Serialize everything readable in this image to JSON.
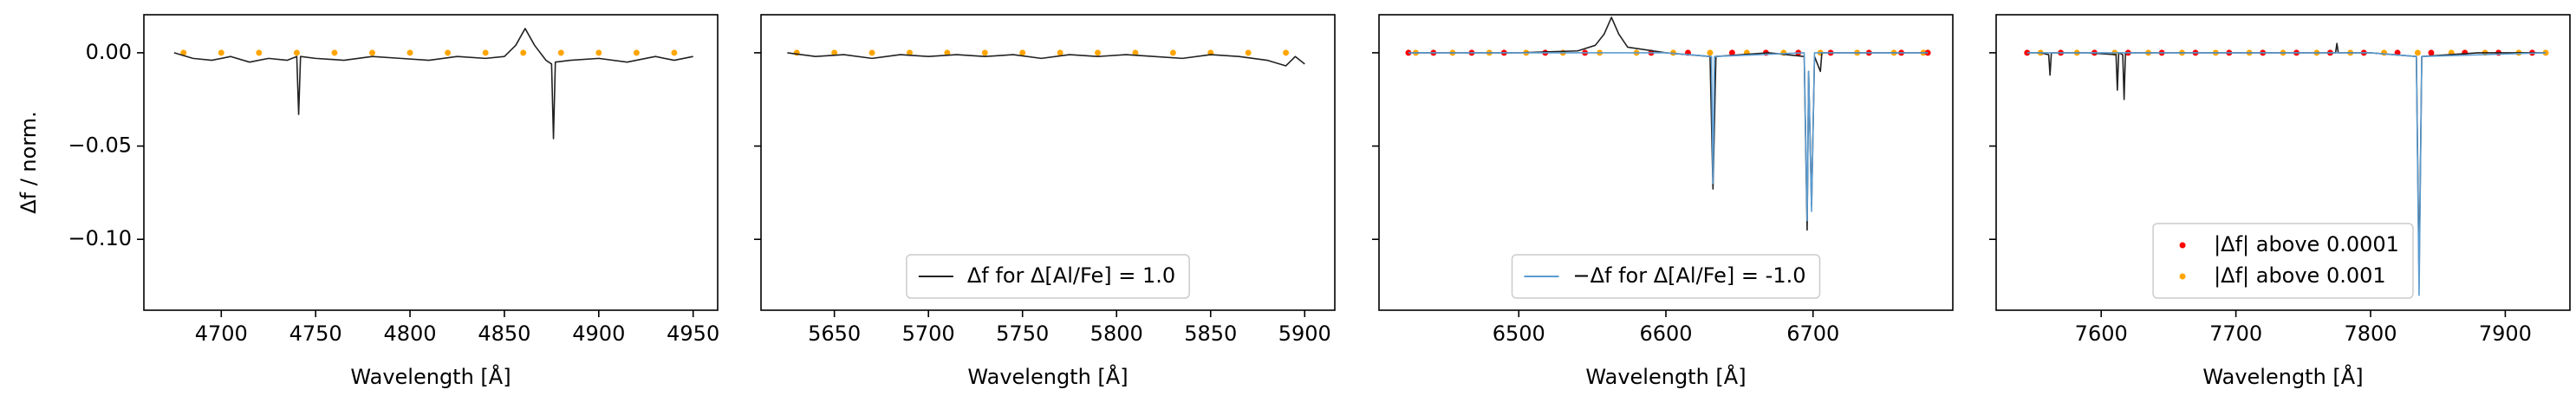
{
  "chart_data": [
    {
      "type": "line",
      "x_label": "Wavelength [Å]",
      "y_label": "Δf / norm.",
      "xlim": [
        4659,
        4963
      ],
      "xticks": [
        4700,
        4750,
        4800,
        4850,
        4900,
        4950
      ],
      "ylim": [
        -0.138,
        0.0204
      ],
      "yticks": [
        {
          "value": 0,
          "label": "0.00"
        },
        {
          "value": -0.05,
          "label": "−0.05"
        },
        {
          "value": -0.1,
          "label": "−0.10"
        }
      ],
      "series": [
        {
          "type": "scatter",
          "color": "#ffa500",
          "x": [
            4680,
            4700,
            4720,
            4740,
            4760,
            4780,
            4800,
            4820,
            4840,
            4860,
            4880,
            4900,
            4920,
            4940
          ],
          "values": [
            0,
            0,
            0,
            0,
            0,
            0,
            0,
            0,
            0,
            0,
            0,
            0,
            0,
            0
          ]
        },
        {
          "type": "line",
          "color": "#222222",
          "x": [
            4675,
            4685,
            4695,
            4705,
            4715,
            4725,
            4735,
            4740,
            4741,
            4742,
            4750,
            4765,
            4780,
            4795,
            4810,
            4825,
            4840,
            4850,
            4856,
            4861,
            4866,
            4872,
            4875,
            4876,
            4877,
            4885,
            4900,
            4915,
            4930,
            4940,
            4950
          ],
          "values": [
            0,
            -0.003,
            -0.004,
            -0.002,
            -0.005,
            -0.003,
            -0.004,
            -0.002,
            -0.033,
            -0.002,
            -0.003,
            -0.004,
            -0.002,
            -0.003,
            -0.004,
            -0.002,
            -0.003,
            -0.002,
            0.004,
            0.013,
            0.004,
            -0.004,
            -0.006,
            -0.046,
            -0.005,
            -0.004,
            -0.003,
            -0.005,
            -0.002,
            -0.004,
            -0.002
          ]
        }
      ]
    },
    {
      "type": "line",
      "x_label": "Wavelength [Å]",
      "legend": "lower center",
      "xlim": [
        5611,
        5916
      ],
      "xticks": [
        5650,
        5700,
        5750,
        5800,
        5850,
        5900
      ],
      "ylim": [
        -0.138,
        0.0204
      ],
      "yticks": [
        0,
        -0.05,
        -0.1
      ],
      "series": [
        {
          "type": "scatter",
          "color": "#ffa500",
          "x": [
            5630,
            5650,
            5670,
            5690,
            5710,
            5730,
            5750,
            5770,
            5790,
            5810,
            5830,
            5850,
            5870,
            5890
          ],
          "values": [
            0,
            0,
            0,
            0,
            0,
            0,
            0,
            0,
            0,
            0,
            0,
            0,
            0,
            0
          ]
        },
        {
          "type": "line",
          "name": "Δf for Δ[Al/Fe] = 1.0",
          "color": "#222222",
          "x": [
            5625,
            5640,
            5655,
            5670,
            5685,
            5700,
            5715,
            5730,
            5745,
            5760,
            5775,
            5790,
            5805,
            5820,
            5835,
            5850,
            5865,
            5880,
            5890,
            5895,
            5900
          ],
          "values": [
            0,
            -0.002,
            -0.001,
            -0.003,
            -0.001,
            -0.002,
            -0.001,
            -0.002,
            -0.001,
            -0.003,
            -0.001,
            -0.002,
            -0.001,
            -0.002,
            -0.003,
            -0.001,
            -0.002,
            -0.004,
            -0.007,
            -0.002,
            -0.006
          ]
        }
      ]
    },
    {
      "type": "line",
      "x_label": "Wavelength [Å]",
      "legend": "lower center",
      "xlim": [
        6405,
        6795
      ],
      "xticks": [
        6500,
        6600,
        6700
      ],
      "ylim": [
        -0.138,
        0.0204
      ],
      "yticks": [
        0,
        -0.05,
        -0.1
      ],
      "series": [
        {
          "type": "scatter",
          "color": "#ffa500",
          "x": [
            6430,
            6455,
            6480,
            6505,
            6530,
            6555,
            6580,
            6605,
            6630,
            6655,
            6680,
            6705,
            6730,
            6755,
            6775
          ],
          "values": [
            0,
            0,
            0,
            0,
            0,
            0,
            0,
            0,
            0,
            0,
            0,
            0,
            0,
            0,
            0
          ]
        },
        {
          "type": "scatter",
          "color": "#ff0000",
          "x": [
            6425,
            6442,
            6468,
            6490,
            6518,
            6545,
            6590,
            6615,
            6645,
            6668,
            6690,
            6712,
            6738,
            6760,
            6778
          ],
          "values": [
            0,
            0,
            0,
            0,
            0,
            0,
            0,
            0,
            0,
            0,
            0,
            0,
            0,
            0,
            0
          ]
        },
        {
          "type": "line",
          "color": "#222222",
          "x": [
            6425,
            6460,
            6500,
            6540,
            6552,
            6558,
            6563,
            6568,
            6574,
            6600,
            6630,
            6632,
            6634,
            6670,
            6694,
            6696,
            6697,
            6699,
            6701,
            6705,
            6706,
            6740,
            6778
          ],
          "values": [
            0,
            0,
            0,
            0.001,
            0.004,
            0.01,
            0.019,
            0.01,
            0.003,
            0,
            -0.002,
            -0.073,
            -0.002,
            0,
            -0.002,
            -0.095,
            -0.01,
            -0.082,
            -0.002,
            -0.01,
            0,
            0,
            0
          ]
        },
        {
          "type": "line",
          "name": "−Δf for Δ[Al/Fe] = -1.0",
          "color": "#5b9bd0",
          "x": [
            6425,
            6600,
            6631,
            6632,
            6633,
            6694,
            6696,
            6697,
            6699,
            6701,
            6778
          ],
          "values": [
            0,
            0,
            -0.002,
            -0.07,
            -0.002,
            0,
            -0.09,
            -0.01,
            -0.085,
            0,
            0
          ]
        }
      ]
    },
    {
      "type": "line",
      "x_label": "Wavelength [Å]",
      "legend": "lower center",
      "xlim": [
        7522,
        7948
      ],
      "xticks": [
        7600,
        7700,
        7800,
        7900
      ],
      "ylim": [
        -0.138,
        0.0204
      ],
      "yticks": [
        0,
        -0.05,
        -0.1
      ],
      "series": [
        {
          "type": "scatter",
          "name": "|Δf| above 0.0001",
          "color": "#ff0000",
          "x": [
            7545,
            7570,
            7595,
            7620,
            7645,
            7670,
            7695,
            7720,
            7745,
            7770,
            7795,
            7820,
            7845,
            7870,
            7895,
            7920
          ],
          "values": [
            0,
            0,
            0,
            0,
            0,
            0,
            0,
            0,
            0,
            0,
            0,
            0,
            0,
            0,
            0,
            0
          ]
        },
        {
          "type": "scatter",
          "name": "|Δf| above 0.001",
          "color": "#ffa500",
          "x": [
            7555,
            7582,
            7610,
            7635,
            7660,
            7685,
            7710,
            7735,
            7760,
            7785,
            7810,
            7835,
            7860,
            7885,
            7910,
            7930
          ],
          "values": [
            0,
            0,
            0,
            0,
            0,
            0,
            0,
            0,
            0,
            0,
            0,
            0,
            0,
            0,
            0,
            0
          ]
        },
        {
          "type": "line",
          "color": "#222222",
          "x": [
            7545,
            7555,
            7561,
            7562,
            7563,
            7590,
            7611,
            7612,
            7613,
            7616,
            7617,
            7618,
            7650,
            7700,
            7774,
            7775,
            7776,
            7800,
            7834,
            7836,
            7838,
            7880,
            7930
          ],
          "values": [
            0,
            0,
            -0.001,
            -0.012,
            0,
            0,
            -0.001,
            -0.02,
            0,
            -0.001,
            -0.025,
            0,
            0,
            0,
            0,
            0.005,
            0,
            0,
            -0.002,
            -0.12,
            -0.002,
            0,
            0
          ]
        },
        {
          "type": "line",
          "color": "#5b9bd0",
          "x": [
            7545,
            7800,
            7834,
            7836,
            7838,
            7930
          ],
          "values": [
            0,
            0,
            -0.002,
            -0.13,
            -0.002,
            0
          ]
        }
      ]
    }
  ]
}
